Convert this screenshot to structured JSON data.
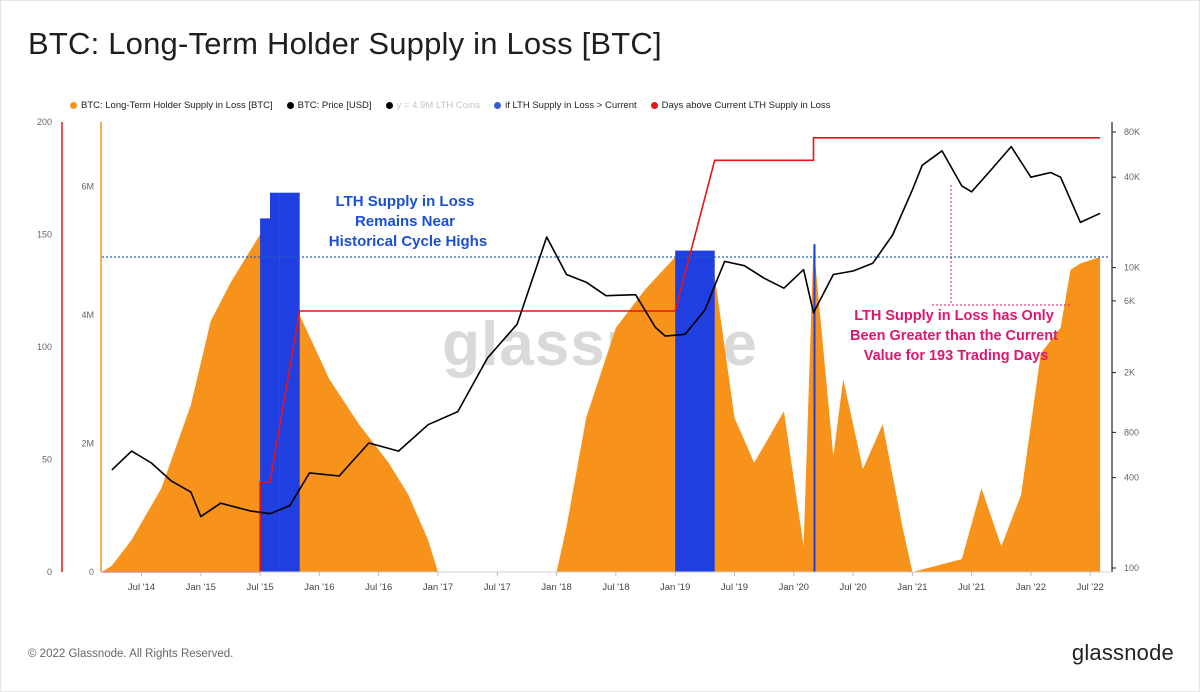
{
  "title": "BTC: Long-Term Holder Supply in Loss [BTC]",
  "footer": "© 2022 Glassnode. All Rights Reserved.",
  "brand": "glassnode",
  "watermark": "glassnode",
  "legend": [
    {
      "label": "BTC: Long-Term Holder Supply in Loss [BTC]",
      "color": "#f7931a",
      "muted": false
    },
    {
      "label": "BTC: Price [USD]",
      "color": "#000000",
      "muted": false
    },
    {
      "label": "y = 4.9M LTH Coins",
      "color": "#000000",
      "muted": true
    },
    {
      "label": "if LTH Supply in Loss > Current",
      "color": "#3b5bdb",
      "muted": false
    },
    {
      "label": "Days above Current LTH Supply in Loss",
      "color": "#e8141a",
      "muted": false
    }
  ],
  "annotations": {
    "blue": [
      "LTH Supply in Loss",
      "Remains Near",
      "Historical Cycle Highs"
    ],
    "pink": [
      "LTH Supply in Loss has Only",
      "Been Greater than the Current",
      "Value for 193 Trading Days"
    ]
  },
  "colors": {
    "supply": "#f7931a",
    "price": "#000000",
    "highlight": "#1f3fe0",
    "days": "#e8141a",
    "threshold": "#1f5fbf",
    "annotation_blue": "#1a4fd6",
    "annotation_pink": "#e0156e"
  },
  "chart_data": {
    "type": "area",
    "x_tick_labels": [
      "Jul '14",
      "Jan '15",
      "Jul '15",
      "Jan '16",
      "Jul '16",
      "Jan '17",
      "Jul '17",
      "Jan '18",
      "Jul '18",
      "Jan '19",
      "Jul '19",
      "Jan '20",
      "Jul '20",
      "Jan '21",
      "Jul '21",
      "Jan '22",
      "Jul '22"
    ],
    "y_left_days_ticks": [
      "0",
      "50",
      "100",
      "150",
      "200"
    ],
    "y_left_supply_ticks": [
      "0",
      "2M",
      "4M",
      "6M"
    ],
    "y_right_price_ticks": [
      "100",
      "400",
      "800",
      "2K",
      "6K",
      "10K",
      "40K",
      "80K"
    ],
    "threshold_supply": 4900000,
    "series": [
      {
        "name": "BTC: Long-Term Holder Supply in Loss [BTC]",
        "unit": "BTC",
        "points": [
          [
            "2014-03",
            0
          ],
          [
            "2014-04",
            100000
          ],
          [
            "2014-06",
            500000
          ],
          [
            "2014-09",
            1300000
          ],
          [
            "2014-12",
            2600000
          ],
          [
            "2015-02",
            3900000
          ],
          [
            "2015-04",
            4500000
          ],
          [
            "2015-06",
            5000000
          ],
          [
            "2015-08",
            5500000
          ],
          [
            "2015-09",
            5900000
          ],
          [
            "2015-10",
            5400000
          ],
          [
            "2015-11",
            4000000
          ],
          [
            "2016-02",
            3000000
          ],
          [
            "2016-05",
            2300000
          ],
          [
            "2016-08",
            1700000
          ],
          [
            "2016-10",
            1200000
          ],
          [
            "2016-12",
            500000
          ],
          [
            "2017-01",
            0
          ],
          [
            "2018-01",
            0
          ],
          [
            "2018-02",
            700000
          ],
          [
            "2018-04",
            2400000
          ],
          [
            "2018-07",
            3800000
          ],
          [
            "2018-10",
            4400000
          ],
          [
            "2019-01",
            4900000
          ],
          [
            "2019-03",
            5000000
          ],
          [
            "2019-05",
            4600000
          ],
          [
            "2019-07",
            2400000
          ],
          [
            "2019-09",
            1700000
          ],
          [
            "2019-12",
            2500000
          ],
          [
            "2020-02",
            400000
          ],
          [
            "2020-03",
            5100000
          ],
          [
            "2020-05",
            1800000
          ],
          [
            "2020-06",
            3000000
          ],
          [
            "2020-08",
            1600000
          ],
          [
            "2020-10",
            2300000
          ],
          [
            "2020-12",
            700000
          ],
          [
            "2021-01",
            0
          ],
          [
            "2021-06",
            200000
          ],
          [
            "2021-08",
            1300000
          ],
          [
            "2021-10",
            400000
          ],
          [
            "2021-12",
            1200000
          ],
          [
            "2022-02",
            3400000
          ],
          [
            "2022-04",
            3800000
          ],
          [
            "2022-05",
            4700000
          ],
          [
            "2022-06",
            4800000
          ],
          [
            "2022-08",
            4900000
          ]
        ]
      },
      {
        "name": "BTC: Price [USD]",
        "unit": "USD",
        "points": [
          [
            "2014-04",
            450
          ],
          [
            "2014-06",
            600
          ],
          [
            "2014-08",
            500
          ],
          [
            "2014-10",
            380
          ],
          [
            "2014-12",
            320
          ],
          [
            "2015-01",
            220
          ],
          [
            "2015-03",
            270
          ],
          [
            "2015-06",
            240
          ],
          [
            "2015-08",
            230
          ],
          [
            "2015-10",
            260
          ],
          [
            "2015-12",
            430
          ],
          [
            "2016-03",
            410
          ],
          [
            "2016-06",
            680
          ],
          [
            "2016-09",
            600
          ],
          [
            "2016-12",
            900
          ],
          [
            "2017-03",
            1100
          ],
          [
            "2017-06",
            2500
          ],
          [
            "2017-09",
            4200
          ],
          [
            "2017-12",
            16000
          ],
          [
            "2018-02",
            9000
          ],
          [
            "2018-04",
            8000
          ],
          [
            "2018-06",
            6500
          ],
          [
            "2018-09",
            6600
          ],
          [
            "2018-11",
            4000
          ],
          [
            "2018-12",
            3500
          ],
          [
            "2019-02",
            3600
          ],
          [
            "2019-04",
            5200
          ],
          [
            "2019-06",
            11000
          ],
          [
            "2019-08",
            10300
          ],
          [
            "2019-10",
            8500
          ],
          [
            "2019-12",
            7300
          ],
          [
            "2020-02",
            9700
          ],
          [
            "2020-03",
            5000
          ],
          [
            "2020-05",
            9000
          ],
          [
            "2020-07",
            9500
          ],
          [
            "2020-09",
            10700
          ],
          [
            "2020-11",
            16500
          ],
          [
            "2021-01",
            33000
          ],
          [
            "2021-02",
            48000
          ],
          [
            "2021-04",
            60000
          ],
          [
            "2021-06",
            35000
          ],
          [
            "2021-07",
            32000
          ],
          [
            "2021-09",
            45000
          ],
          [
            "2021-11",
            64000
          ],
          [
            "2022-01",
            40000
          ],
          [
            "2022-03",
            43000
          ],
          [
            "2022-04",
            40000
          ],
          [
            "2022-06",
            20000
          ],
          [
            "2022-08",
            23000
          ]
        ]
      },
      {
        "name": "if LTH Supply in Loss > Current",
        "unit": "BTC",
        "ranges": [
          [
            "2015-07",
            "2015-08"
          ],
          [
            "2015-08",
            "2015-09"
          ],
          [
            "2015-09",
            "2015-11"
          ],
          [
            "2019-01",
            "2019-05"
          ],
          [
            "2020-03",
            "2020-03"
          ]
        ]
      },
      {
        "name": "Days above Current LTH Supply in Loss",
        "unit": "days",
        "points": [
          [
            "2014-03",
            0
          ],
          [
            "2015-07",
            0
          ],
          [
            "2015-07",
            40
          ],
          [
            "2015-08",
            40
          ],
          [
            "2015-11",
            116
          ],
          [
            "2019-01",
            116
          ],
          [
            "2019-05",
            183
          ],
          [
            "2020-03",
            183
          ],
          [
            "2020-03",
            193
          ],
          [
            "2022-08",
            193
          ]
        ]
      }
    ],
    "x_range": [
      "2014-03",
      "2022-09"
    ],
    "y_left_days_range": [
      0,
      200
    ],
    "y_left_supply_range": [
      0,
      7000000
    ],
    "y_right_price_scale": "log",
    "grid": false
  }
}
